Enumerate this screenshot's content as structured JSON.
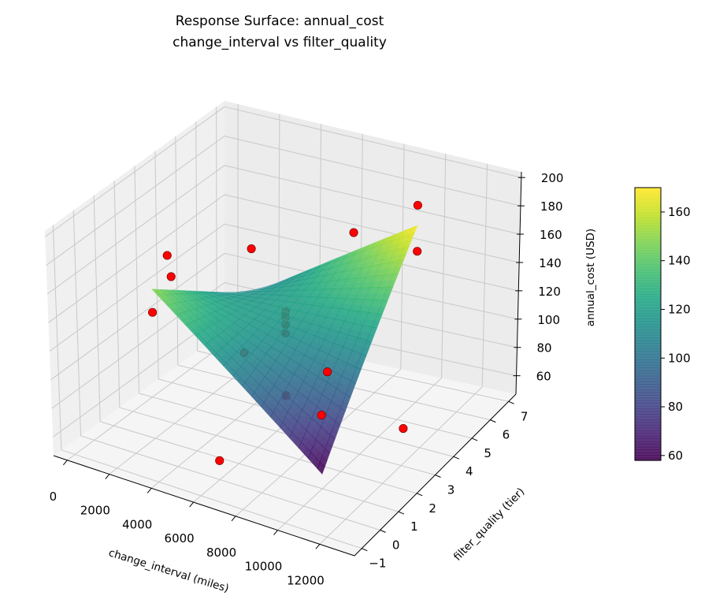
{
  "chart_data": {
    "type": "surface",
    "title_lines": [
      "Response Surface: annual_cost",
      "change_interval vs filter_quality"
    ],
    "xlabel": "change_interval (miles)",
    "ylabel": "filter_quality (tier)",
    "zlabel": "annual_cost (USD)",
    "xlim": [
      -650,
      13650
    ],
    "ylim": [
      -1.4,
      7.4
    ],
    "zlim": [
      47,
      204
    ],
    "x_ticks": [
      0,
      2000,
      4000,
      6000,
      8000,
      10000,
      12000
    ],
    "y_ticks": [
      -1,
      0,
      1,
      2,
      3,
      4,
      5,
      6,
      7
    ],
    "z_ticks": [
      60,
      80,
      100,
      120,
      140,
      160,
      180,
      200
    ],
    "grid": true,
    "colormap": "viridis",
    "surface": {
      "x_range": [
        2000,
        10000
      ],
      "y_range": [
        1,
        6
      ],
      "corner_values": {
        "x_min_y_min": 150,
        "x_max_y_min": 57,
        "x_min_y_max": 95,
        "x_max_y_max": 170
      }
    },
    "colorbar": {
      "min": 58,
      "max": 170,
      "ticks": [
        60,
        80,
        100,
        120,
        140,
        160
      ]
    },
    "points_color": "#ff0000",
    "points": [
      {
        "x": 343,
        "y": 3.5,
        "z": 141,
        "occluded": false
      },
      {
        "x": 1000,
        "y": 3,
        "z": 134,
        "occluded": false
      },
      {
        "x": 2000,
        "y": 1,
        "z": 134,
        "occluded": false
      },
      {
        "x": 2000,
        "y": 6,
        "z": 126,
        "occluded": false
      },
      {
        "x": 6000,
        "y": 7,
        "z": 140,
        "occluded": false
      },
      {
        "x": 10000,
        "y": 6,
        "z": 184,
        "occluded": false
      },
      {
        "x": 10000,
        "y": 6,
        "z": 152,
        "occluded": true
      },
      {
        "x": 6000,
        "y": 3.5,
        "z": 124,
        "occluded": true
      },
      {
        "x": 6000,
        "y": 3.5,
        "z": 120,
        "occluded": true
      },
      {
        "x": 6000,
        "y": 3.5,
        "z": 115,
        "occluded": true
      },
      {
        "x": 6000,
        "y": 3.5,
        "z": 109,
        "occluded": true
      },
      {
        "x": 4000,
        "y": 3.5,
        "z": 88,
        "occluded": true
      },
      {
        "x": 8000,
        "y": 3.5,
        "z": 90,
        "occluded": false
      },
      {
        "x": 6000,
        "y": 3.5,
        "z": 66,
        "occluded": true
      },
      {
        "x": 10000,
        "y": 1,
        "z": 97,
        "occluded": false
      },
      {
        "x": 11657,
        "y": 3.5,
        "z": 65,
        "occluded": false
      },
      {
        "x": 6000,
        "y": 0,
        "z": 60,
        "occluded": false
      }
    ]
  }
}
